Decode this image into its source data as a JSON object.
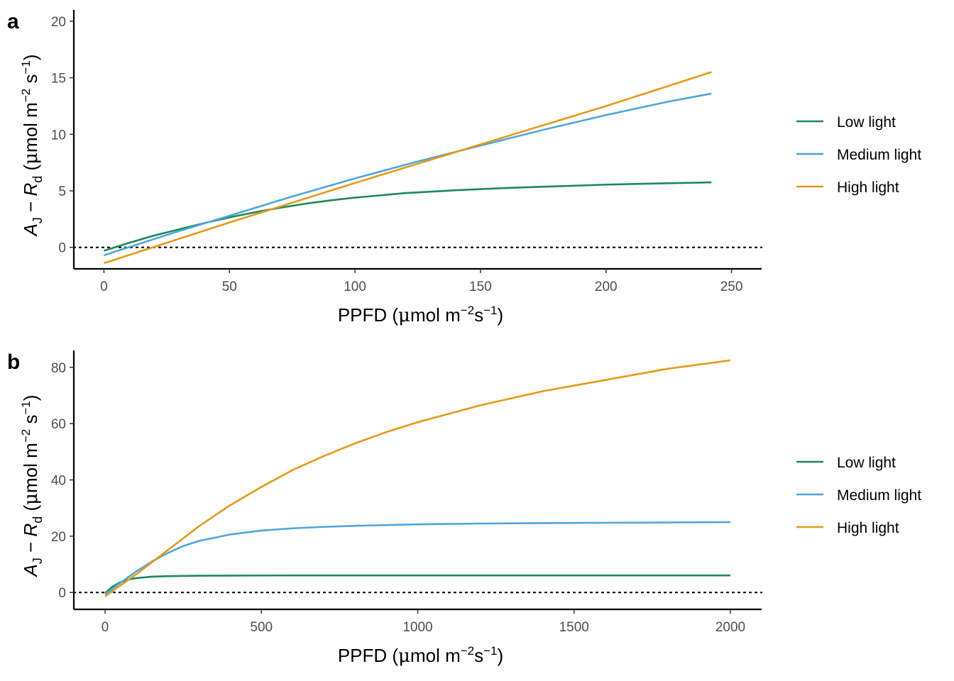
{
  "colors": {
    "low": "#1b8a5a",
    "medium": "#4ea6dc",
    "high": "#e69a16"
  },
  "chart_data": [
    {
      "type": "line",
      "panel_label": "a",
      "xlabel": "PPFD (μmol m⁻²s⁻¹)",
      "ylabel": "A_J − R_d (μmol m⁻² s⁻¹)",
      "xlim": [
        -12,
        262
      ],
      "ylim": [
        -1.9,
        21
      ],
      "xticks": [
        0,
        50,
        100,
        150,
        200,
        250
      ],
      "yticks": [
        0,
        5,
        10,
        15,
        20
      ],
      "reference_line": {
        "y": 0,
        "style": "dotted"
      },
      "legend_position": "right",
      "series": [
        {
          "name": "Low light",
          "color": "#1b8a5a",
          "x": [
            0,
            10,
            20,
            30,
            40,
            50,
            60,
            70,
            80,
            90,
            100,
            120,
            140,
            160,
            180,
            200,
            220,
            242
          ],
          "y": [
            -0.3,
            0.4,
            1.05,
            1.6,
            2.15,
            2.65,
            3.1,
            3.5,
            3.85,
            4.15,
            4.4,
            4.8,
            5.05,
            5.25,
            5.4,
            5.55,
            5.65,
            5.75
          ]
        },
        {
          "name": "Medium light",
          "color": "#4ea6dc",
          "x": [
            0,
            25,
            50,
            75,
            100,
            125,
            150,
            175,
            200,
            225,
            242
          ],
          "y": [
            -0.7,
            1.1,
            2.8,
            4.5,
            6.1,
            7.6,
            9.0,
            10.4,
            11.7,
            12.9,
            13.6
          ]
        },
        {
          "name": "High light",
          "color": "#e69a16",
          "x": [
            0,
            50,
            100,
            150,
            200,
            242
          ],
          "y": [
            -1.4,
            2.2,
            5.7,
            9.1,
            12.5,
            15.5
          ]
        }
      ]
    },
    {
      "type": "line",
      "panel_label": "b",
      "xlabel": "PPFD (μmol m⁻²s⁻¹)",
      "ylabel": "A_J − R_d (μmol m⁻² s⁻¹)",
      "xlim": [
        -100,
        2100
      ],
      "ylim": [
        -6,
        86
      ],
      "xticks": [
        0,
        500,
        1000,
        1500,
        2000
      ],
      "yticks": [
        0,
        20,
        40,
        60,
        80
      ],
      "reference_line": {
        "y": 0,
        "style": "dotted"
      },
      "legend_position": "right",
      "series": [
        {
          "name": "Low light",
          "color": "#1b8a5a",
          "x": [
            0,
            25,
            50,
            75,
            100,
            150,
            200,
            300,
            400,
            600,
            1000,
            1500,
            2000
          ],
          "y": [
            -0.3,
            2.2,
            3.7,
            4.6,
            5.1,
            5.6,
            5.8,
            5.95,
            6.0,
            6.05,
            6.05,
            6.05,
            6.05
          ]
        },
        {
          "name": "Medium light",
          "color": "#4ea6dc",
          "x": [
            0,
            50,
            100,
            150,
            200,
            250,
            300,
            400,
            500,
            600,
            700,
            800,
            1000,
            1200,
            1500,
            2000
          ],
          "y": [
            -0.7,
            3.5,
            7.5,
            11.0,
            14.0,
            16.5,
            18.3,
            20.6,
            22.0,
            22.8,
            23.3,
            23.7,
            24.2,
            24.5,
            24.7,
            25.0
          ]
        },
        {
          "name": "High light",
          "color": "#e69a16",
          "x": [
            0,
            100,
            200,
            300,
            400,
            500,
            600,
            700,
            800,
            900,
            1000,
            1200,
            1400,
            1600,
            1800,
            2000
          ],
          "y": [
            -1.4,
            6.5,
            15.0,
            23.5,
            31.0,
            37.5,
            43.5,
            48.5,
            53.0,
            57.0,
            60.5,
            66.5,
            71.5,
            75.5,
            79.5,
            82.5
          ]
        }
      ]
    }
  ]
}
